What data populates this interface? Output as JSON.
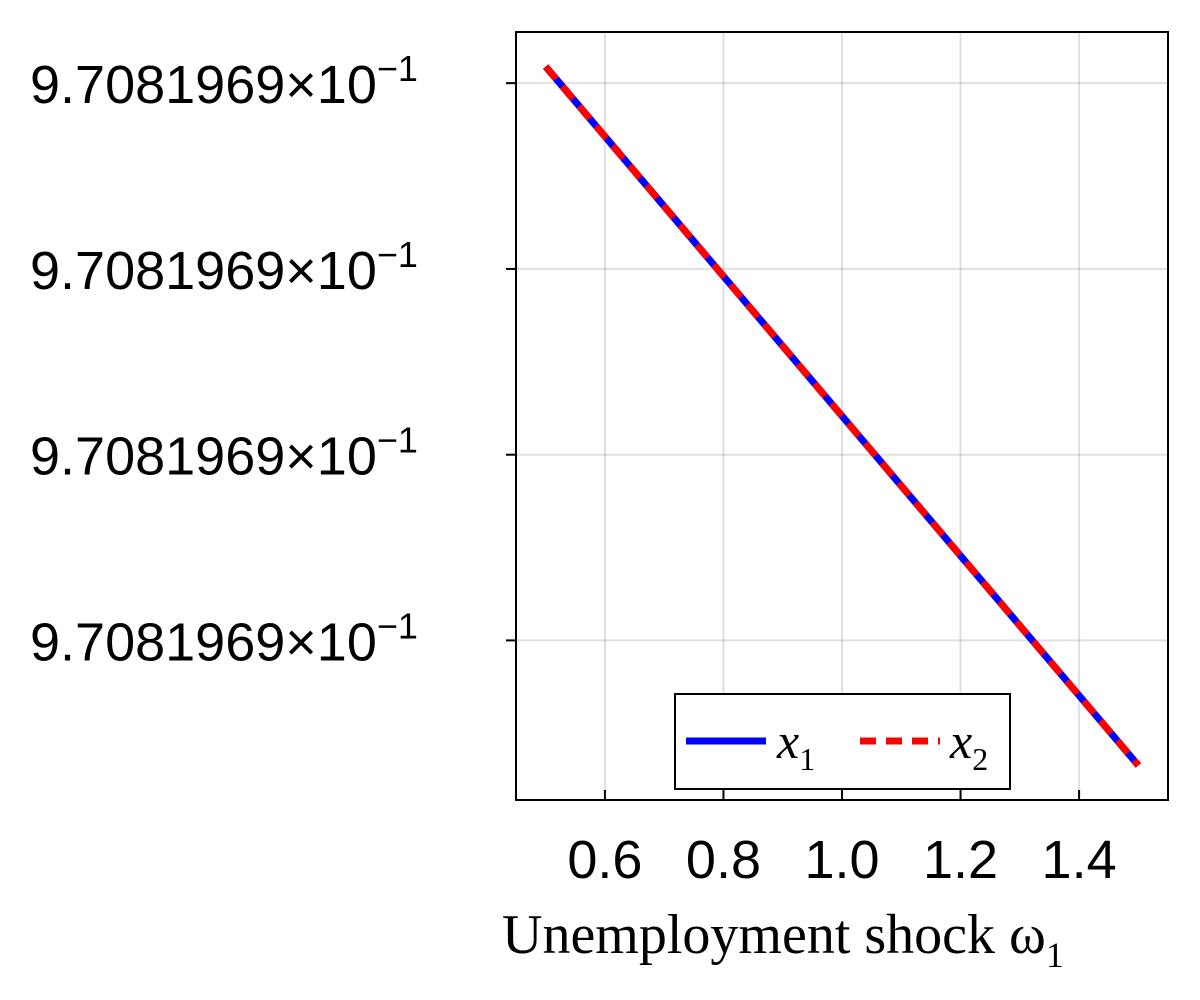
{
  "chart_data": {
    "type": "line",
    "title": "",
    "xlabel": "Unemployment shock ω",
    "xlabel_subscript": "1",
    "ylabel": "",
    "xlim": [
      0.45,
      1.55
    ],
    "ylim": [
      0.0,
      1.0
    ],
    "x_ticks": [
      0.6,
      0.8,
      1.0,
      1.2,
      1.4
    ],
    "x_tick_labels": [
      "0.6",
      "0.8",
      "1.0",
      "1.2",
      "1.4"
    ],
    "y_ticks": [
      0.9334,
      0.6915,
      0.4496,
      0.2078
    ],
    "y_tick_labels": [
      {
        "mantissa": "9.7081969×10",
        "exponent": "−1"
      },
      {
        "mantissa": "9.7081969×10",
        "exponent": "−1"
      },
      {
        "mantissa": "9.7081969×10",
        "exponent": "−1"
      },
      {
        "mantissa": "9.7081969×10",
        "exponent": "−1"
      }
    ],
    "grid": true,
    "legend_position": "bottom-right",
    "series": [
      {
        "name": "x",
        "subscript": "1",
        "style": "solid",
        "color": "#0000ff",
        "x": [
          0.5,
          1.5
        ],
        "y": [
          0.955,
          0.045
        ]
      },
      {
        "name": "x",
        "subscript": "2",
        "style": "dashed",
        "color": "#ff0000",
        "x": [
          0.5,
          1.5
        ],
        "y": [
          0.955,
          0.045
        ]
      }
    ]
  }
}
